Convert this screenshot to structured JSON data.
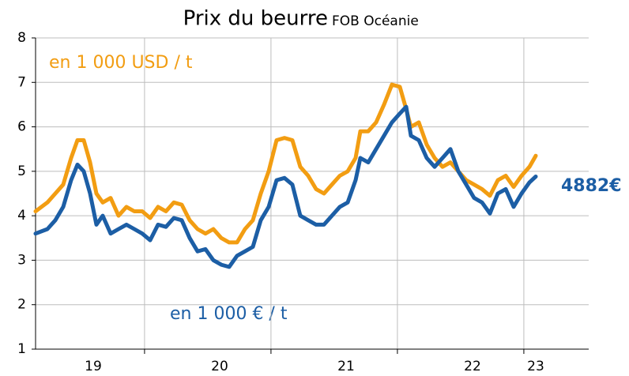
{
  "chart_data": {
    "type": "line",
    "title": "Prix du beurre",
    "subtitle": "FOB Océanie",
    "x": [
      18.544,
      18.638,
      18.7,
      18.763,
      18.825,
      18.875,
      18.925,
      18.975,
      19.025,
      19.075,
      19.138,
      19.2,
      19.263,
      19.325,
      19.388,
      19.45,
      19.513,
      19.575,
      19.638,
      19.7,
      19.763,
      19.825,
      19.888,
      19.95,
      20.013,
      20.075,
      20.138,
      20.2,
      20.263,
      20.325,
      20.388,
      20.45,
      20.513,
      20.575,
      20.638,
      20.7,
      20.763,
      20.825,
      20.888,
      20.95,
      21.013,
      21.075,
      21.113,
      21.175,
      21.238,
      21.3,
      21.363,
      21.425,
      21.475,
      21.513,
      21.575,
      21.638,
      21.7,
      21.763,
      21.825,
      21.888,
      21.95,
      22.013,
      22.075,
      22.138,
      22.2,
      22.263,
      22.325,
      22.388,
      22.45,
      22.5
    ],
    "series": [
      {
        "name": "en 1 000 USD / t",
        "color": "#f29d12",
        "values": [
          4.1,
          4.3,
          4.5,
          4.7,
          5.3,
          5.7,
          5.7,
          5.2,
          4.5,
          4.3,
          4.4,
          4.0,
          4.2,
          4.1,
          4.1,
          3.95,
          4.2,
          4.1,
          4.3,
          4.25,
          3.9,
          3.7,
          3.6,
          3.7,
          3.5,
          3.4,
          3.4,
          3.7,
          3.9,
          4.5,
          5.0,
          5.7,
          5.75,
          5.7,
          5.1,
          4.9,
          4.6,
          4.5,
          4.7,
          4.9,
          5.0,
          5.3,
          5.9,
          5.9,
          6.1,
          6.5,
          6.95,
          6.9,
          6.4,
          6.0,
          6.1,
          5.6,
          5.3,
          5.1,
          5.2,
          5.0,
          4.8,
          4.7,
          4.6,
          4.45,
          4.8,
          4.9,
          4.65,
          4.9,
          5.1,
          5.35
        ]
      },
      {
        "name": "en 1 000 € / t",
        "color": "#1c5ea5",
        "values": [
          3.6,
          3.7,
          3.9,
          4.2,
          4.8,
          5.15,
          5.0,
          4.5,
          3.8,
          4.0,
          3.6,
          3.7,
          3.8,
          3.7,
          3.6,
          3.45,
          3.8,
          3.75,
          3.95,
          3.9,
          3.5,
          3.2,
          3.25,
          3.0,
          2.9,
          2.85,
          3.1,
          3.2,
          3.3,
          3.9,
          4.2,
          4.8,
          4.85,
          4.7,
          4.0,
          3.9,
          3.8,
          3.8,
          4.0,
          4.2,
          4.3,
          4.8,
          5.3,
          5.2,
          5.5,
          5.8,
          6.1,
          6.3,
          6.45,
          5.8,
          5.7,
          5.3,
          5.1,
          5.3,
          5.5,
          5.0,
          4.7,
          4.4,
          4.3,
          4.05,
          4.5,
          4.6,
          4.2,
          4.5,
          4.75,
          4.882
        ]
      }
    ],
    "annotations": [
      "4882€"
    ],
    "xlim": [
      18.544,
      22.919
    ],
    "xticks": [
      19,
      20,
      21,
      22,
      {
        "value": 22.5,
        "label": "23"
      }
    ],
    "xgrid": [
      19.406,
      20.406,
      21.406,
      22.406
    ],
    "ylim": [
      1,
      8
    ],
    "yticks": [
      1,
      2,
      3,
      4,
      5,
      6,
      7,
      8
    ],
    "grid": true
  }
}
